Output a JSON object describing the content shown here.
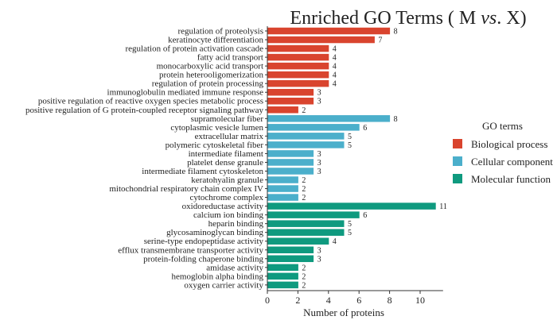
{
  "chart_data": {
    "type": "bar",
    "orientation": "horizontal",
    "title": "Enriched GO Terms ( M vs. X)",
    "title_parts": {
      "prefix": "Enriched GO Terms ( M ",
      "italic": "vs",
      "suffix": ". X)"
    },
    "xlabel": "Number of proteins",
    "ylabel": "",
    "xlim": [
      0,
      11.5
    ],
    "xticks": [
      0,
      2,
      4,
      6,
      8,
      10
    ],
    "grid": false,
    "legend": {
      "title": "GO terms",
      "placement": "right",
      "entries": [
        {
          "name": "Biological process",
          "color": "#d9442e"
        },
        {
          "name": "Cellular component",
          "color": "#4bafcb"
        },
        {
          "name": "Molecular function",
          "color": "#0f9a7f"
        }
      ]
    },
    "categories": [
      "regulation of proteolysis",
      "keratinocyte differentiation",
      "regulation of protein activation cascade",
      "fatty acid transport",
      "monocarboxylic acid transport",
      "protein heterooligomerization",
      "regulation of protein processing",
      "immunoglobulin mediated immune response",
      "positive regulation of reactive oxygen species metabolic process",
      "positive regulation of G protein-coupled receptor signaling pathway",
      "supramolecular fiber",
      "cytoplasmic vesicle lumen",
      "extracellular matrix",
      "polymeric cytoskeletal fiber",
      "intermediate filament",
      "platelet dense granule",
      "intermediate filament cytoskeleton",
      "keratohyalin granule",
      "mitochondrial respiratory chain complex IV",
      "cytochrome complex",
      "oxidoreductase activity",
      "calcium ion binding",
      "heparin binding",
      "glycosaminoglycan binding",
      "serine-type endopeptidase activity",
      "efflux transmembrane transporter activity",
      "protein-folding chaperone binding",
      "amidase activity",
      "hemoglobin alpha binding",
      "oxygen carrier activity"
    ],
    "values": [
      8,
      7,
      4,
      4,
      4,
      4,
      4,
      3,
      3,
      2,
      8,
      6,
      5,
      5,
      3,
      3,
      3,
      2,
      2,
      2,
      11,
      6,
      5,
      5,
      4,
      3,
      3,
      2,
      2,
      2
    ],
    "groups": [
      0,
      0,
      0,
      0,
      0,
      0,
      0,
      0,
      0,
      0,
      1,
      1,
      1,
      1,
      1,
      1,
      1,
      1,
      1,
      1,
      2,
      2,
      2,
      2,
      2,
      2,
      2,
      2,
      2,
      2
    ]
  }
}
